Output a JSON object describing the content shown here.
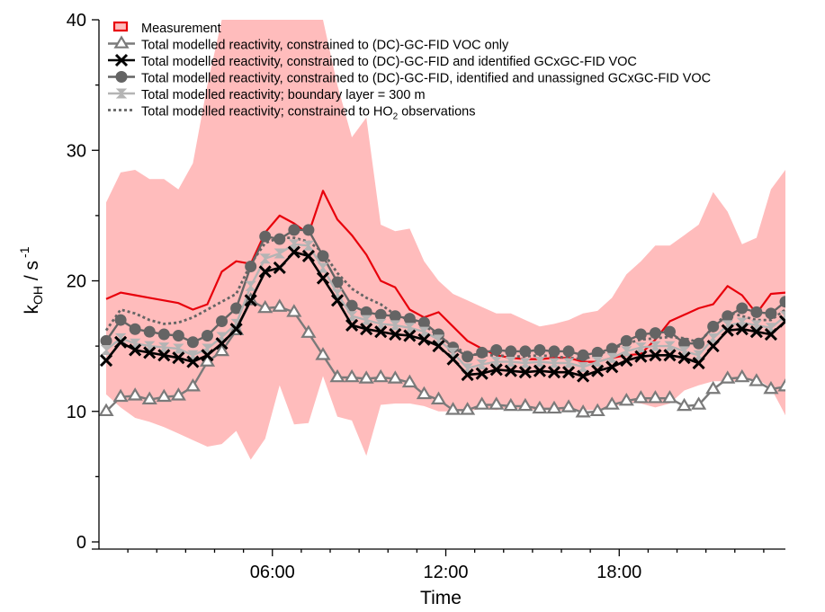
{
  "chart_data": {
    "type": "line",
    "title": "",
    "xlabel": "Time",
    "ylabel": "k",
    "ylabel_sub": "OH",
    "ylabel_unit": "/ s",
    "ylabel_unit_sup": "-1",
    "xlim": [
      0,
      23.75
    ],
    "ylim": [
      0,
      40
    ],
    "xticks": [
      6,
      12,
      18
    ],
    "xtick_labels": [
      "06:00",
      "12:00",
      "18:00"
    ],
    "yticks": [
      0,
      10,
      20,
      30,
      40
    ],
    "ytick_labels": [
      "0",
      "10",
      "20",
      "30",
      "40"
    ],
    "grid": false,
    "legend_position": "top-left",
    "x": [
      0.25,
      0.75,
      1.25,
      1.75,
      2.25,
      2.75,
      3.25,
      3.75,
      4.25,
      4.75,
      5.25,
      5.75,
      6.25,
      6.75,
      7.25,
      7.75,
      8.25,
      8.75,
      9.25,
      9.75,
      10.25,
      10.75,
      11.25,
      11.75,
      12.25,
      12.75,
      13.25,
      13.75,
      14.25,
      14.75,
      15.25,
      15.75,
      16.25,
      16.75,
      17.25,
      17.75,
      18.25,
      18.75,
      19.25,
      19.75,
      20.25,
      20.75,
      21.25,
      21.75,
      22.25,
      22.75,
      23.25,
      23.75
    ],
    "measurement_range": {
      "upper": [
        26,
        28.3,
        28.5,
        27.8,
        27.8,
        27,
        29,
        35,
        40,
        40,
        40,
        40,
        40,
        40,
        40,
        40,
        35,
        31,
        32.5,
        24.3,
        23.8,
        24,
        21.5,
        20,
        19,
        18.5,
        18,
        17.5,
        17.5,
        17,
        16.5,
        16.7,
        17,
        17.5,
        17.7,
        18.7,
        20.5,
        21.5,
        22.7,
        22.7,
        23.5,
        24.3,
        26.8,
        25.3,
        22.8,
        23.3,
        27,
        28.5
      ],
      "lower": [
        11.3,
        10.3,
        9.5,
        9.2,
        8.8,
        8.3,
        7.8,
        7.3,
        7.5,
        8.5,
        6.3,
        7.9,
        12,
        9,
        9.1,
        12.7,
        9.6,
        9.3,
        6.6,
        10.5,
        10.6,
        10.6,
        10.4,
        10,
        10,
        10,
        10.2,
        10.1,
        10.3,
        10.1,
        10.1,
        10.1,
        10,
        10.1,
        10.1,
        10.3,
        10.7,
        10.6,
        10.3,
        10.6,
        11.6,
        12,
        12.3,
        12.3,
        12.3,
        12.5,
        11.8,
        9.7
      ]
    },
    "series": [
      {
        "name": "Measurement",
        "color": "#e8000b",
        "values": [
          18.6,
          19.1,
          18.9,
          18.7,
          18.5,
          18.3,
          17.8,
          18.2,
          20.7,
          21.5,
          21.3,
          23.7,
          25,
          24.4,
          23.6,
          26.9,
          24.7,
          23.5,
          22,
          20,
          19.5,
          17.8,
          17.2,
          17.6,
          16.5,
          15.4,
          14.8,
          14.3,
          14.1,
          14,
          14,
          14.1,
          14.1,
          13.8,
          13.8,
          14.1,
          14.3,
          14.4,
          15.5,
          16.9,
          17.4,
          17.9,
          18.2,
          19.6,
          18.9,
          17.5,
          19,
          19.1
        ]
      },
      {
        "name": "Total modelled reactivity, constrained to (DC)-GC-FID VOC only",
        "color": "#7a7a7a",
        "marker": "triangle",
        "values": [
          10,
          11.1,
          11.2,
          10.9,
          11.1,
          11.2,
          11.9,
          13.8,
          14.6,
          16.2,
          18.5,
          17.9,
          18,
          17.6,
          16,
          14.3,
          12.6,
          12.6,
          12.5,
          12.6,
          12.5,
          12.2,
          11.3,
          10.9,
          10.1,
          10.1,
          10.5,
          10.5,
          10.4,
          10.4,
          10.2,
          10.2,
          10.3,
          9.9,
          10,
          10.5,
          10.8,
          11,
          11,
          11,
          10.4,
          10.5,
          11.7,
          12.5,
          12.6,
          12.3,
          11.7,
          11.9
        ]
      },
      {
        "name": "Total modelled reactivity, constrained to (DC)-GC-FID and identified GCxGC-FID VOC",
        "color": "#000000",
        "marker": "x",
        "values": [
          13.9,
          15.3,
          14.7,
          14.5,
          14.3,
          14.1,
          13.8,
          14.3,
          15.2,
          16.3,
          18.5,
          20.7,
          21,
          22.2,
          21.9,
          20.2,
          18.5,
          16.6,
          16.3,
          16.1,
          15.9,
          15.8,
          15.5,
          15,
          14,
          12.8,
          12.9,
          13.2,
          13.1,
          13,
          13.1,
          13,
          13,
          12.7,
          13.1,
          13.4,
          13.9,
          14.2,
          14.3,
          14.3,
          14.1,
          13.7,
          15,
          16.2,
          16.3,
          16.1,
          15.9,
          16.9
        ]
      },
      {
        "name": "Total modelled reactivity, constrained to (DC)-GC-FID, identified and unassigned GCxGC-FID VOC",
        "color": "#646464",
        "marker": "circle",
        "values": [
          15.4,
          17,
          16.3,
          16.1,
          15.9,
          15.8,
          15.3,
          15.8,
          16.9,
          17.9,
          21.1,
          23.4,
          23.2,
          23.9,
          23.9,
          21.9,
          19.9,
          18.1,
          17.6,
          17.4,
          17.3,
          17.1,
          16.8,
          15.9,
          14.9,
          14.2,
          14.5,
          14.7,
          14.6,
          14.6,
          14.7,
          14.6,
          14.6,
          14.3,
          14.5,
          14.8,
          15.4,
          15.9,
          16,
          16.1,
          15.2,
          15.2,
          16.5,
          17.3,
          17.9,
          17.6,
          17.5,
          18.4
        ]
      },
      {
        "name": "Total modelled reactivity; boundary layer = 300 m",
        "color": "#b4b4b4",
        "marker": "hourglass",
        "values": [
          14.7,
          15.6,
          15.2,
          15,
          14.9,
          14.8,
          14.3,
          14.8,
          15.7,
          16.7,
          19.6,
          21.7,
          22.1,
          22.8,
          22.7,
          21,
          19,
          17.3,
          17,
          16.7,
          16.6,
          16.4,
          16.1,
          15.5,
          14.5,
          13.3,
          13.6,
          13.8,
          13.8,
          13.7,
          13.8,
          13.7,
          13.7,
          13.4,
          13.8,
          14.1,
          14.6,
          14.9,
          15,
          15,
          14.6,
          14.3,
          15.6,
          16.6,
          16.8,
          16.6,
          16.4,
          17.3
        ]
      },
      {
        "name": "Total modelled reactivity; constrained to HO",
        "name_sub": "2",
        "name_suffix": " observations",
        "color": "#646464",
        "dashed": true,
        "values": [
          16.2,
          17.8,
          17.5,
          17,
          16.7,
          16.8,
          17.2,
          17.8,
          18.4,
          19,
          21.3,
          22.9,
          23.3,
          23.3,
          23,
          22.2,
          20.6,
          19.4,
          18.7,
          18.2,
          17.4,
          17,
          16.6,
          15.8,
          15,
          14.4,
          14.3,
          14.3,
          14.2,
          14.2,
          14.3,
          14.2,
          14.1,
          14,
          14.3,
          14.8,
          15.2,
          15.5,
          15.6,
          15.7,
          15.6,
          15.3,
          16.4,
          17.6,
          17.3,
          17,
          17,
          17.8
        ]
      }
    ]
  }
}
